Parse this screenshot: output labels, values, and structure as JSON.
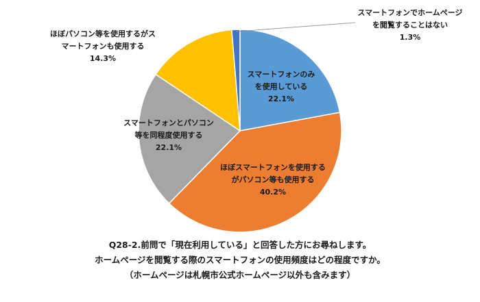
{
  "chart_data": {
    "type": "pie",
    "slices": [
      {
        "lines": [
          "スマートフォンのみ",
          "を使用している"
        ],
        "percent_label": "22.1%",
        "value": 22.1,
        "color": "#5b9bd5"
      },
      {
        "lines": [
          "ほぼスマートフォンを使用する",
          "がパソコン等も使用する"
        ],
        "percent_label": "40.2%",
        "value": 40.2,
        "color": "#ed7d31"
      },
      {
        "lines": [
          "スマートフォンとパソコン",
          "等を同程度使用する"
        ],
        "percent_label": "22.1%",
        "value": 22.1,
        "color": "#a5a5a5"
      },
      {
        "lines": [
          "ほぼパソコン等を使用するがス",
          "マートフォンも使用する"
        ],
        "percent_label": "14.3%",
        "value": 14.3,
        "color": "#ffc000"
      },
      {
        "lines": [
          "スマートフォンでホームページ",
          "を閲覧することはない"
        ],
        "percent_label": "1.3%",
        "value": 1.3,
        "color": "#4472c4"
      }
    ]
  },
  "caption": {
    "line1": "Q28-2.前問で「現在利用している」と回答した方にお尋ねします。",
    "line2": "ホームページを閲覧する際のスマートフォンの使用頻度はどの程度ですか。",
    "line3": "（ホームページは札幌市公式ホームページ以外も含みます）"
  }
}
